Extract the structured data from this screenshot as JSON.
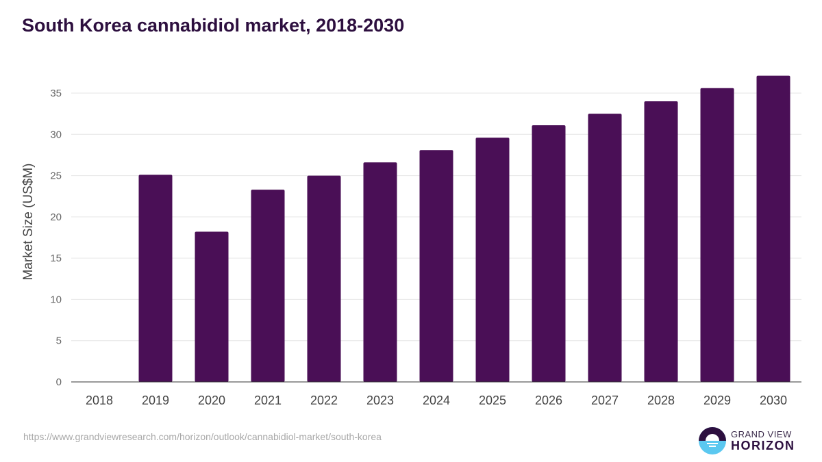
{
  "chart_data": {
    "type": "bar",
    "title": "South Korea cannabidiol market, 2018-2030",
    "xlabel": "",
    "ylabel": "Market Size (US$M)",
    "ylim": [
      0,
      35
    ],
    "yticks": [
      0,
      5,
      10,
      15,
      20,
      25,
      30,
      35
    ],
    "grid": true,
    "categories": [
      "2018",
      "2019",
      "2020",
      "2021",
      "2022",
      "2023",
      "2024",
      "2025",
      "2026",
      "2027",
      "2028",
      "2029",
      "2030"
    ],
    "values": [
      0,
      25.1,
      18.2,
      23.3,
      25.0,
      26.6,
      28.1,
      29.6,
      31.1,
      32.5,
      34.0,
      35.6,
      37.1
    ],
    "bar_color": "#4a0f56"
  },
  "source": "https://www.grandviewresearch.com/horizon/outlook/cannabidiol-market/south-korea",
  "logo": {
    "line1": "GRAND VIEW",
    "line2": "HORIZON"
  }
}
